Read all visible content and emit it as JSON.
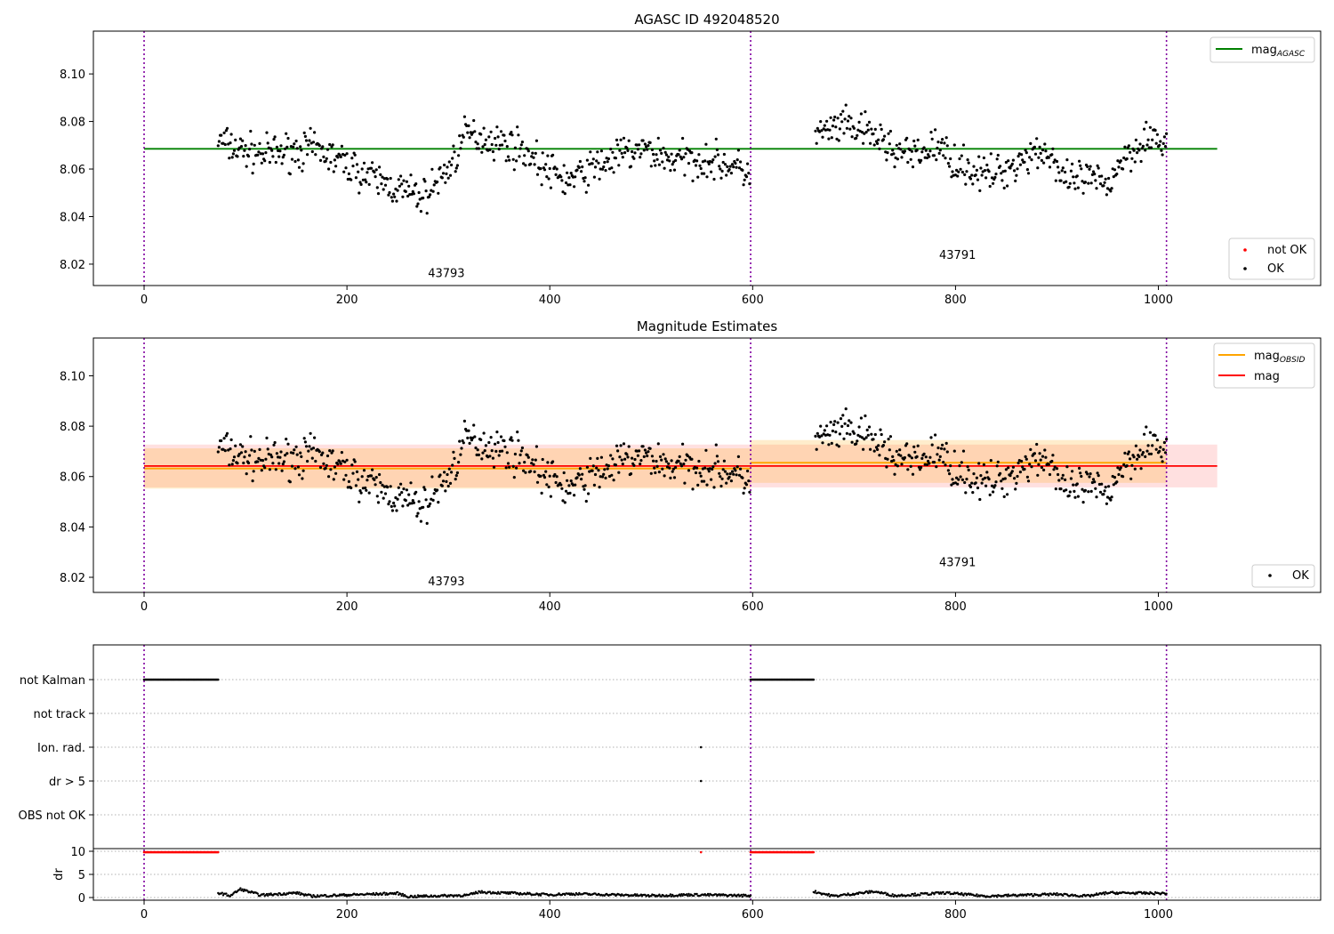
{
  "chart_data": [
    {
      "type": "scatter",
      "title": "AGASC ID 492048520",
      "xlim": [
        -50,
        1160
      ],
      "ylim": [
        8.011,
        8.118
      ],
      "yticks": [
        "8.02",
        "8.04",
        "8.06",
        "8.08",
        "8.10"
      ],
      "xticks": [
        "0",
        "200",
        "400",
        "600",
        "800",
        "1000"
      ],
      "obsid_boundaries": [
        0,
        598,
        1008
      ],
      "obsid_labels": [
        {
          "text": "43793",
          "x": 298,
          "y": 8.0145
        },
        {
          "text": "43791",
          "x": 802,
          "y": 8.0222
        }
      ],
      "lines": [
        {
          "name": "mag_AGASC",
          "color": "#008000",
          "x": [
            0,
            1058
          ],
          "y": [
            8.0685,
            8.0685
          ]
        }
      ],
      "legend_lines": [
        {
          "label": "mag",
          "sub": "AGASC",
          "color": "#008000"
        }
      ],
      "legend_points": [
        {
          "label": "not OK",
          "color": "#ff0000"
        },
        {
          "label": "OK",
          "color": "#000000"
        }
      ]
    },
    {
      "type": "scatter",
      "title": "Magnitude Estimates",
      "xlim": [
        -50,
        1160
      ],
      "ylim": [
        8.014,
        8.115
      ],
      "yticks": [
        "8.02",
        "8.04",
        "8.06",
        "8.08",
        "8.10"
      ],
      "xticks": [
        "0",
        "200",
        "400",
        "600",
        "800",
        "1000"
      ],
      "obsid_boundaries": [
        0,
        598,
        1008
      ],
      "obsid_labels": [
        {
          "text": "43793",
          "x": 298,
          "y": 8.0168
        },
        {
          "text": "43791",
          "x": 802,
          "y": 8.0245
        }
      ],
      "bands": [
        {
          "color": "#ff0000",
          "opacity": 0.12,
          "x": [
            0,
            1058
          ],
          "y_low": 8.0557,
          "y_high": 8.0727
        },
        {
          "color": "#ffa500",
          "opacity": 0.2,
          "x": [
            0,
            598
          ],
          "y_low": 8.0552,
          "y_high": 8.0712
        },
        {
          "color": "#ffa500",
          "opacity": 0.2,
          "x": [
            598,
            1008
          ],
          "y_low": 8.0575,
          "y_high": 8.0745
        }
      ],
      "lines": [
        {
          "name": "mag_OBSID",
          "color": "#ffa500",
          "x": [
            0,
            598
          ],
          "y": [
            8.0632,
            8.0632
          ]
        },
        {
          "name": "mag_OBSID",
          "color": "#ffa500",
          "x": [
            598,
            1008
          ],
          "y": [
            8.0655,
            8.0655
          ]
        },
        {
          "name": "mag",
          "color": "#ff0000",
          "x": [
            0,
            1058
          ],
          "y": [
            8.0642,
            8.0642
          ]
        }
      ],
      "legend_lines": [
        {
          "label": "mag",
          "sub": "OBSID",
          "color": "#ffa500"
        },
        {
          "label": "mag",
          "sub": "",
          "color": "#ff0000"
        }
      ],
      "legend_points": [
        {
          "label": "OK",
          "color": "#000000"
        }
      ]
    }
  ],
  "flags_panel": {
    "categories": [
      "not Kalman",
      "not track",
      "Ion. rad.",
      "dr > 5",
      "OBS not OK"
    ],
    "ylabel": "dr",
    "dr_yticks": [
      "0",
      "5",
      "10"
    ],
    "xticks": [
      "0",
      "200",
      "400",
      "600",
      "800",
      "1000"
    ],
    "xlim": [
      -50,
      1160
    ],
    "obsid_boundaries": [
      0,
      598,
      1008
    ],
    "not_kalman_ranges": [
      [
        0,
        73
      ],
      [
        598,
        660
      ]
    ],
    "ion_rad_points": [
      549
    ],
    "dr_gt5_points": [
      549
    ],
    "dr_capped_ranges": [
      [
        0,
        73
      ],
      [
        598,
        660
      ]
    ],
    "dr_capped_points": [
      549
    ],
    "dr_segments": [
      [
        73,
        598
      ],
      [
        660,
        1008
      ]
    ]
  }
}
